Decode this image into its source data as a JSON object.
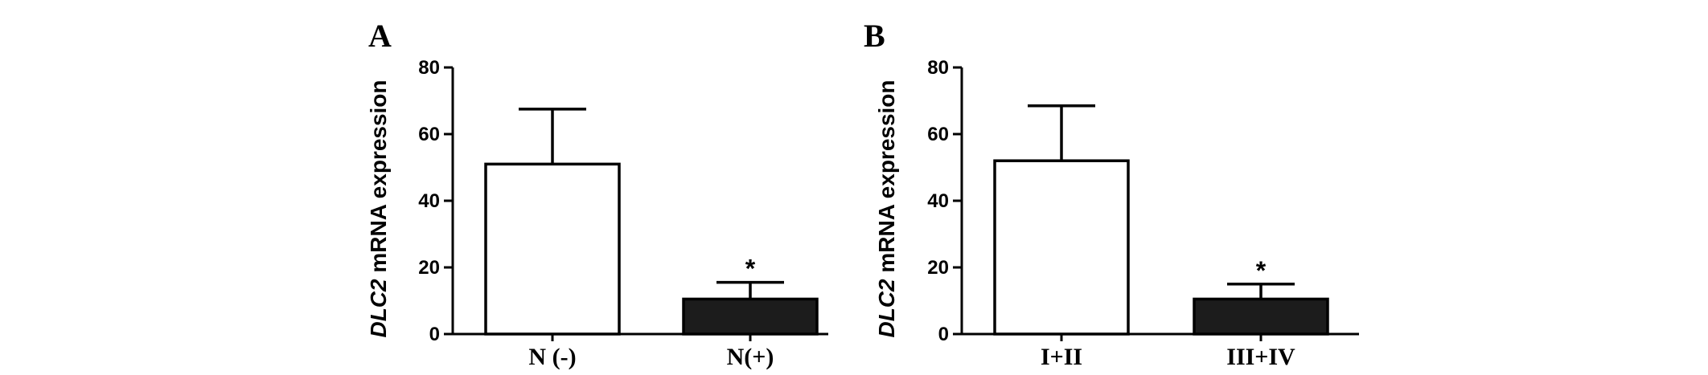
{
  "chart_data": [
    {
      "type": "bar",
      "panel": "A",
      "categories": [
        "N (-)",
        "N(+)"
      ],
      "values": [
        51,
        10.5
      ],
      "error_upper": [
        67.5,
        15.5
      ],
      "annotations": [
        "",
        "*"
      ],
      "bar_colors": [
        "#ffffff",
        "#1c1c1c"
      ],
      "ylabel_gene": "DLC2",
      "ylabel_text": " mRNA expression",
      "ylim": [
        0,
        80
      ],
      "yticks": [
        0,
        20,
        40,
        60,
        80
      ]
    },
    {
      "type": "bar",
      "panel": "B",
      "categories": [
        "I+II",
        "III+IV"
      ],
      "values": [
        52,
        10.5
      ],
      "error_upper": [
        68.5,
        15
      ],
      "annotations": [
        "",
        "*"
      ],
      "bar_colors": [
        "#ffffff",
        "#1c1c1c"
      ],
      "ylabel_gene": "DLC2",
      "ylabel_text": " mRNA expression",
      "ylim": [
        0,
        80
      ],
      "yticks": [
        0,
        20,
        40,
        60,
        80
      ]
    }
  ]
}
